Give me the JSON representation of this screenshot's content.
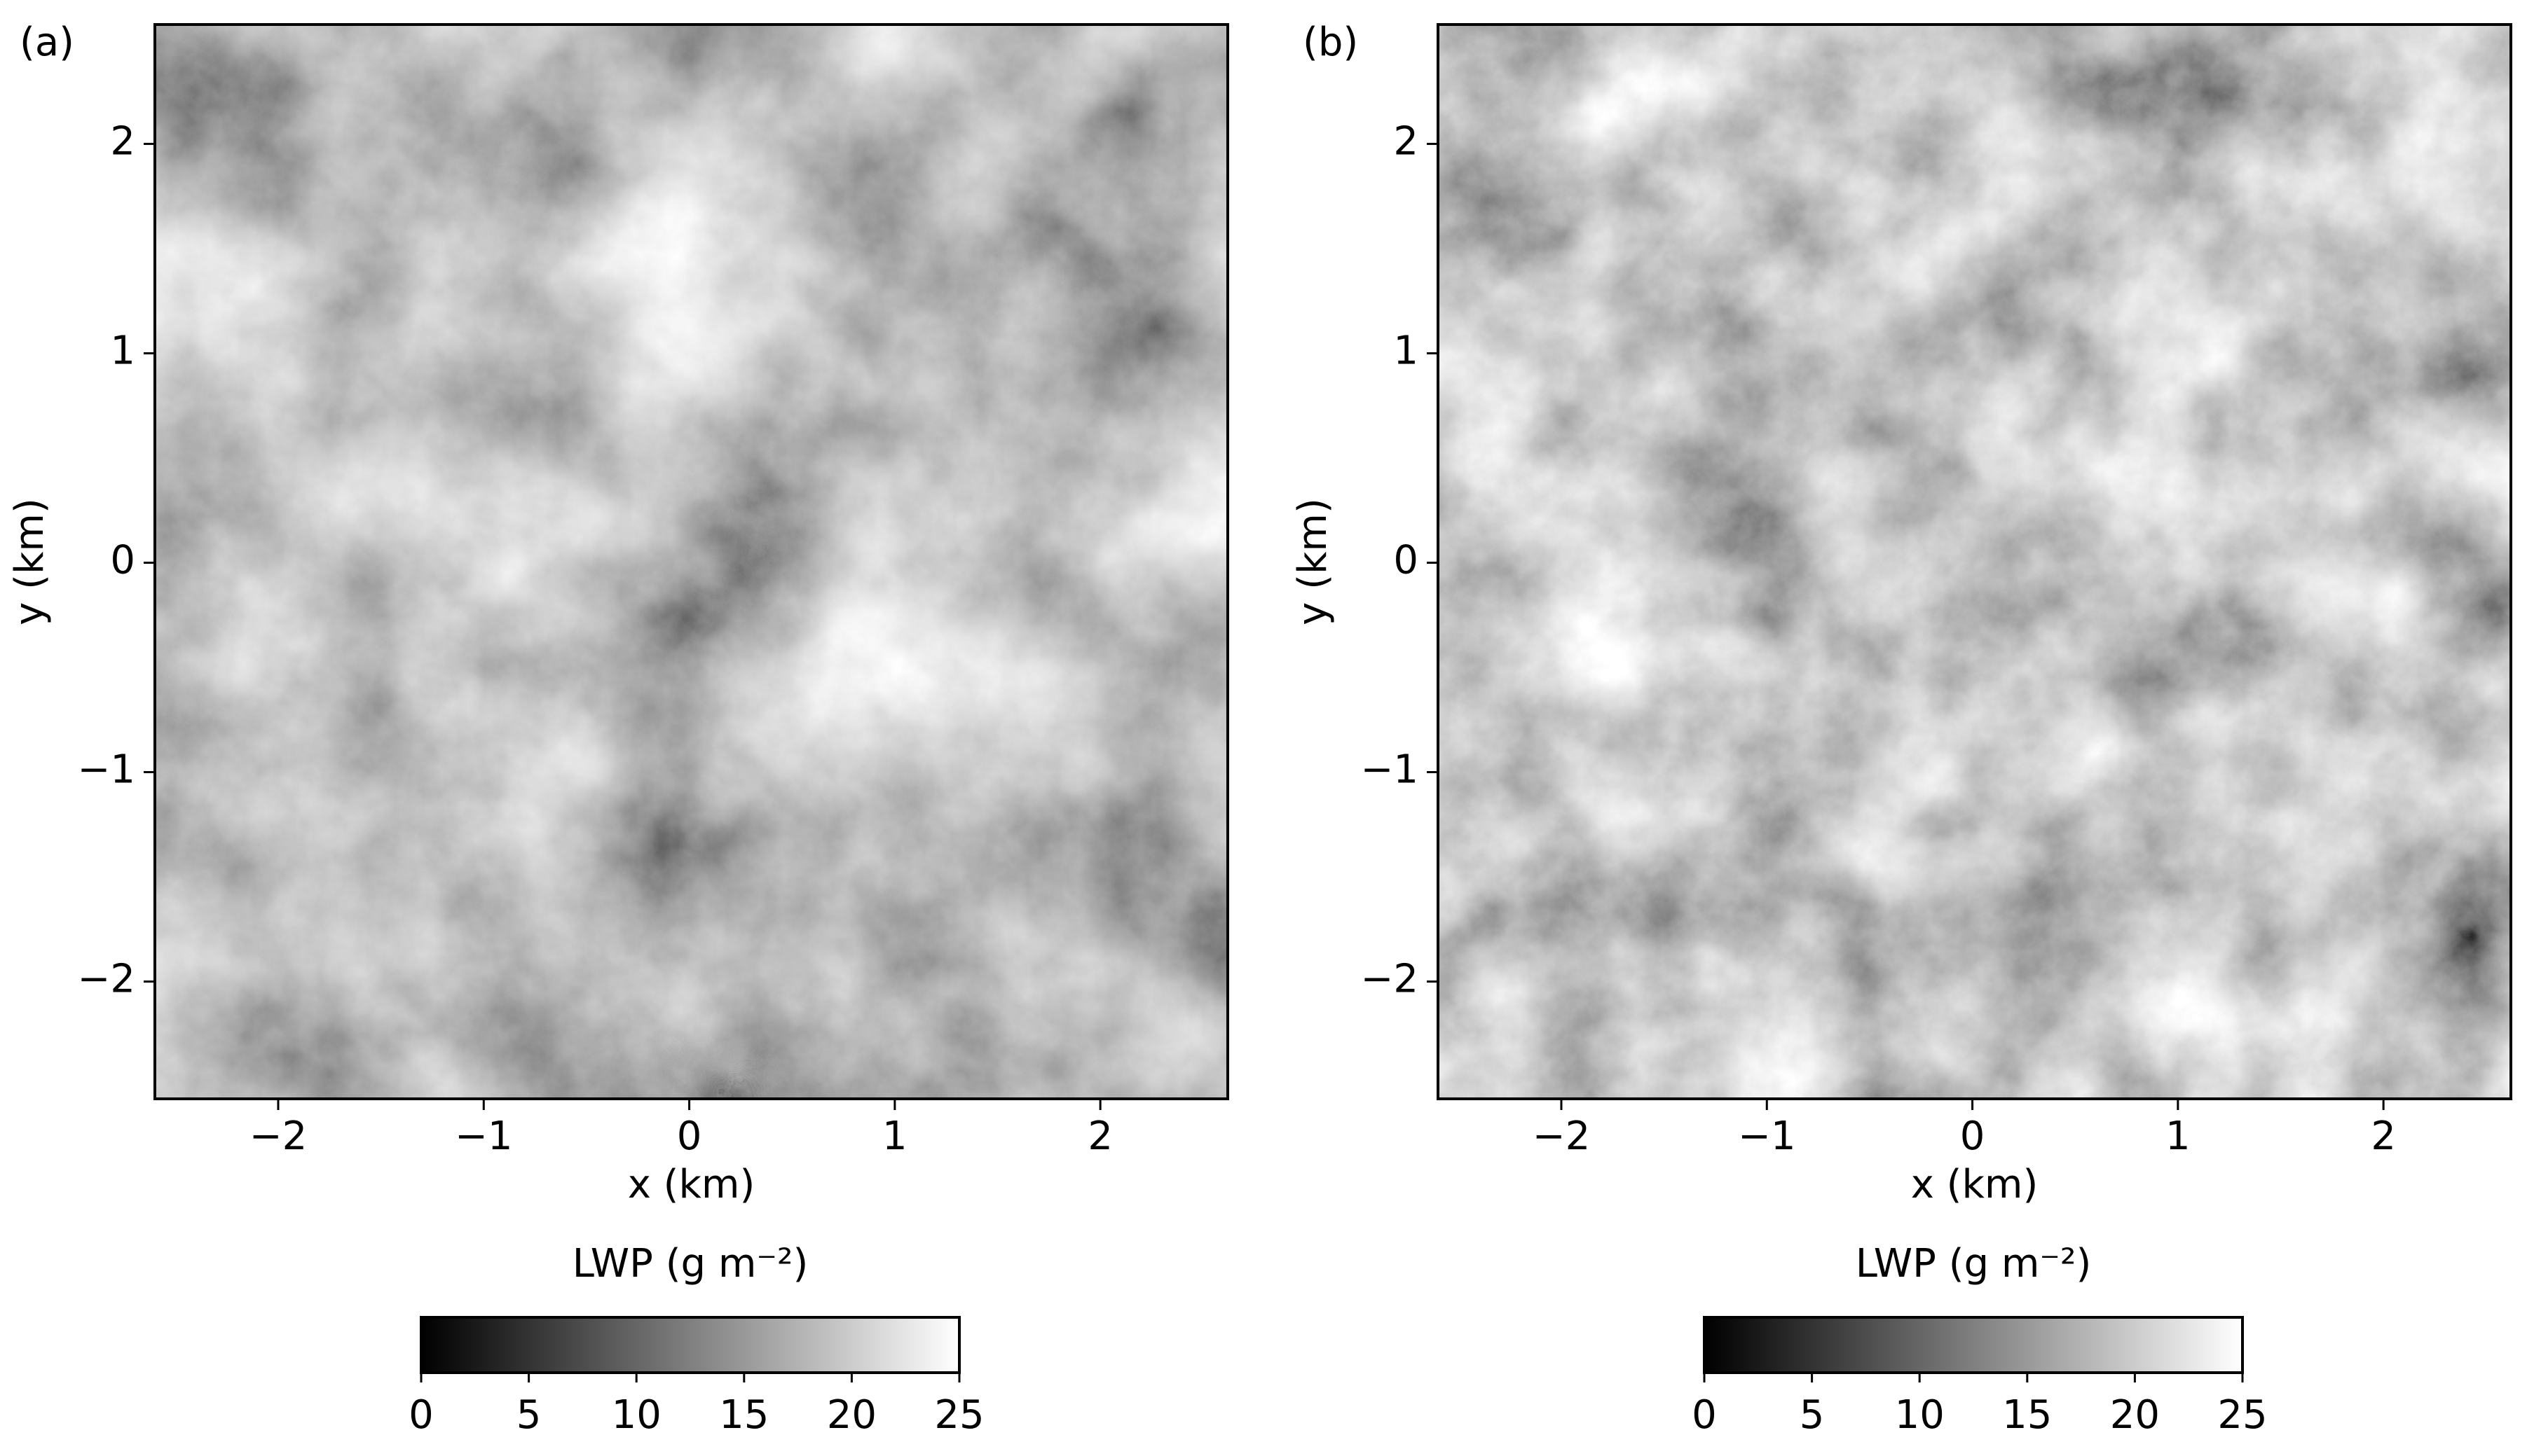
{
  "chart_data": [
    {
      "type": "heatmap",
      "panel_label": "(a)",
      "xlabel": "x (km)",
      "ylabel": "y (km)",
      "xlim": [
        -2.6,
        2.62
      ],
      "ylim": [
        -2.56,
        2.57
      ],
      "xticks": [
        {
          "value": -2,
          "label": "−2"
        },
        {
          "value": -1,
          "label": "−1"
        },
        0,
        1,
        2
      ],
      "yticks": [
        {
          "value": -2,
          "label": "−2"
        },
        {
          "value": -1,
          "label": "−1"
        },
        0,
        1,
        2
      ],
      "colormap": "gray",
      "colorbar_label": "LWP (g m⁻²)",
      "clim": [
        0,
        25
      ],
      "cticks": [
        0,
        5,
        10,
        15,
        20,
        25
      ]
    },
    {
      "type": "heatmap",
      "panel_label": "(b)",
      "xlabel": "x (km)",
      "ylabel": "y (km)",
      "xlim": [
        -2.6,
        2.62
      ],
      "ylim": [
        -2.56,
        2.57
      ],
      "xticks": [
        {
          "value": -2,
          "label": "−2"
        },
        {
          "value": -1,
          "label": "−1"
        },
        0,
        1,
        2
      ],
      "yticks": [
        {
          "value": -2,
          "label": "−2"
        },
        {
          "value": -1,
          "label": "−1"
        },
        0,
        1,
        2
      ],
      "colormap": "gray",
      "colorbar_label": "LWP (g m⁻²)",
      "clim": [
        0,
        25
      ],
      "cticks": [
        0,
        5,
        10,
        15,
        20,
        25
      ]
    }
  ]
}
